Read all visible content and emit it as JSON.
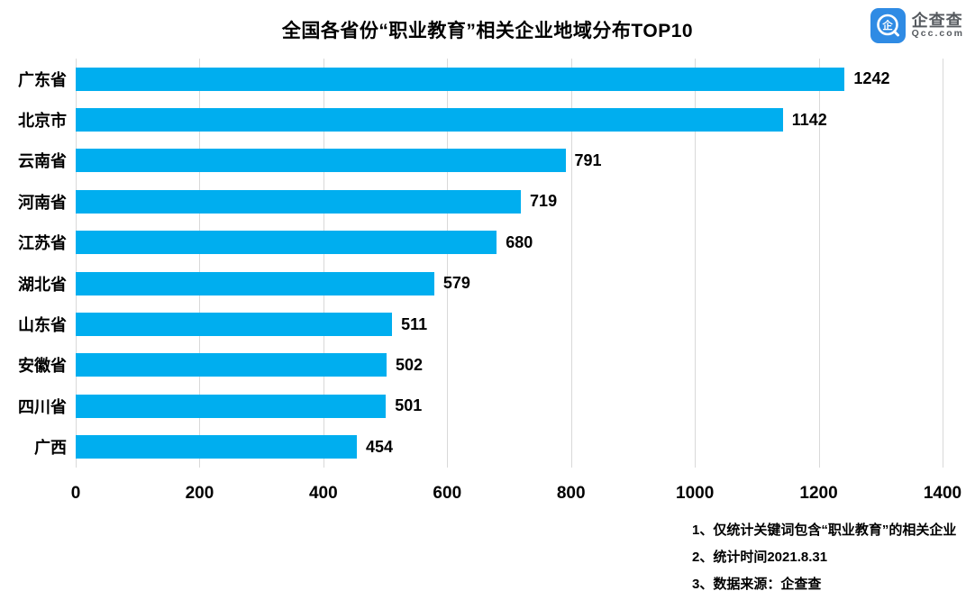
{
  "header": {
    "title": "全国各省份“职业教育”相关企业地域分布TOP10",
    "logo": {
      "name": "企查查",
      "domain": "Qcc.com",
      "icon": "qcc-magnifier-icon",
      "icon_color": "#2F8BE4",
      "icon_glyph": "企",
      "text_color": "#565A5F"
    }
  },
  "chart_data": {
    "type": "bar",
    "orientation": "horizontal",
    "title": "全国各省份“职业教育”相关企业地域分布TOP10",
    "categories": [
      "广东省",
      "北京市",
      "云南省",
      "河南省",
      "江苏省",
      "湖北省",
      "山东省",
      "安徽省",
      "四川省",
      "广西"
    ],
    "values": [
      1242,
      1142,
      791,
      719,
      680,
      579,
      511,
      502,
      501,
      454
    ],
    "xlabel": "",
    "ylabel": "",
    "xlim": [
      0,
      1400
    ],
    "xticks": [
      0,
      200,
      400,
      600,
      800,
      1000,
      1200,
      1400
    ],
    "grid": true,
    "legend_position": "none",
    "bar_color": "#00AEEF",
    "gridline_color": "#D9D9D9",
    "text_color": "#000000",
    "data_labels": true
  },
  "footnotes": [
    "1、仅统计关键词包含“职业教育”的相关企业",
    "2、统计时间2021.8.31",
    "3、数据来源：企查查"
  ]
}
